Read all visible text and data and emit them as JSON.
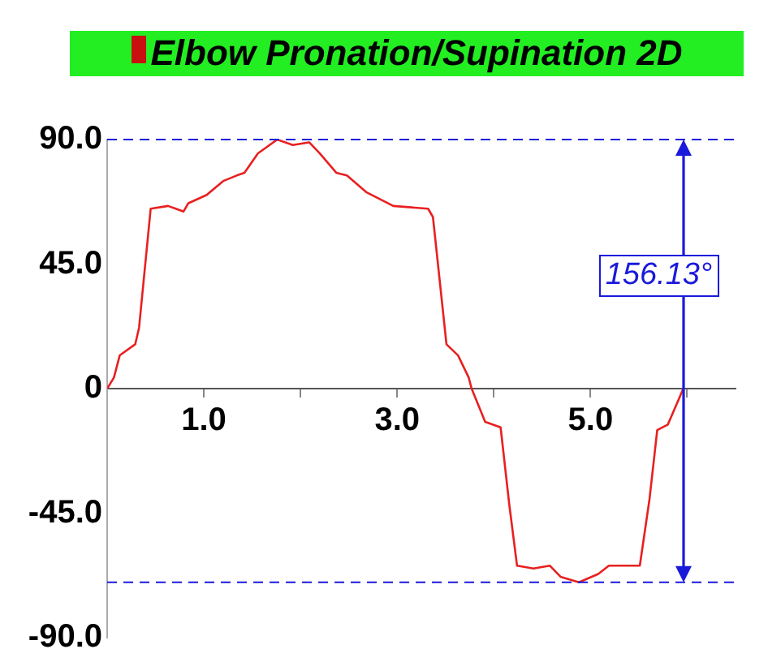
{
  "chart_data": {
    "type": "line",
    "title": "Elbow Pronation/Supination 2D",
    "x": [
      0,
      0.07,
      0.13,
      0.29,
      0.33,
      0.45,
      0.63,
      0.71,
      0.79,
      0.84,
      1.03,
      1.2,
      1.34,
      1.42,
      1.56,
      1.76,
      1.92,
      2.09,
      2.2,
      2.37,
      2.48,
      2.68,
      2.96,
      3.32,
      3.37,
      3.51,
      3.63,
      3.74,
      3.77,
      3.91,
      4.07,
      4.16,
      4.24,
      4.41,
      4.58,
      4.69,
      4.88,
      5.08,
      5.19,
      5.51,
      5.61,
      5.69,
      5.8,
      5.96
    ],
    "series": [
      {
        "color": "#e82020",
        "values": [
          0,
          4,
          12,
          16,
          22,
          65,
          66,
          65,
          64,
          67,
          70,
          75,
          77,
          78,
          85,
          90,
          88,
          89,
          85,
          78,
          77,
          71,
          66,
          65,
          62,
          16,
          12,
          4,
          0,
          -12,
          -14,
          -42,
          -64,
          -65,
          -64,
          -68,
          -70,
          -67,
          -64,
          -64,
          -40,
          -15,
          -13,
          0
        ]
      }
    ],
    "xlim": [
      0,
      6.5
    ],
    "xticks": [
      {
        "value": 1,
        "label": "1.0"
      },
      {
        "value": 2,
        "label": null
      },
      {
        "value": 3,
        "label": "3.0"
      },
      {
        "value": 4,
        "label": null
      },
      {
        "value": 5,
        "label": "5.0"
      },
      {
        "value": 6,
        "label": null
      }
    ],
    "ylim": [
      -90,
      90
    ],
    "yticks": [
      {
        "value": -90,
        "label": "-90.0"
      },
      {
        "value": -45,
        "label": "-45.0"
      },
      {
        "value": 0,
        "label": "0"
      },
      {
        "value": 45,
        "label": "45.0"
      },
      {
        "value": 90,
        "label": "90.0"
      }
    ],
    "ref_lines": [
      {
        "axis": "y",
        "value": 90,
        "color": "#1a1adb",
        "line_style": "dashed"
      },
      {
        "axis": "y",
        "value": -70,
        "color": "#1a1adb",
        "line_style": "dashed"
      }
    ],
    "annotations": [
      "156.13°"
    ],
    "grid": false,
    "legend": false,
    "marker": "none",
    "line_style": "solid"
  }
}
